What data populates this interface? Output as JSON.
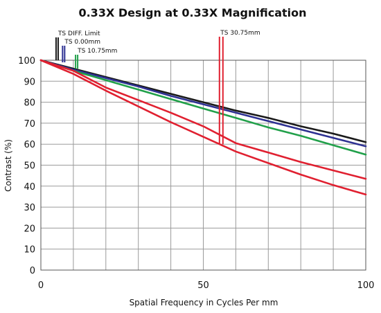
{
  "chart_data": {
    "type": "line",
    "title": "0.33X Design at 0.33X Magnification",
    "xlabel": "Spatial Frequency in Cycles Per mm",
    "ylabel": "Contrast (%)",
    "xlim": [
      0,
      100
    ],
    "ylim": [
      0,
      100
    ],
    "xticks": [
      0,
      50,
      100
    ],
    "yticks": [
      0,
      10,
      20,
      30,
      40,
      50,
      60,
      70,
      80,
      90,
      100
    ],
    "grid": true,
    "series": [
      {
        "color": "#1a1a1a",
        "x": [
          0,
          10,
          20,
          30,
          40,
          50,
          60,
          70,
          80,
          90,
          100
        ],
        "y": [
          100,
          96,
          92,
          88,
          84,
          80,
          76,
          72.5,
          68.5,
          65,
          61
        ]
      },
      {
        "color": "#2e3192",
        "x": [
          0,
          10,
          20,
          30,
          40,
          50,
          60,
          70,
          80,
          90,
          100
        ],
        "y": [
          100,
          95.5,
          91.5,
          87.5,
          83,
          79,
          75,
          71,
          67,
          63,
          59
        ]
      },
      {
        "color": "#21a04a",
        "x": [
          0,
          10,
          20,
          30,
          40,
          50,
          60,
          70,
          80,
          90,
          100
        ],
        "y": [
          100,
          95,
          90.5,
          86,
          81.5,
          77,
          72.5,
          68,
          64,
          59.5,
          55
        ]
      },
      {
        "color": "#e02030",
        "x": [
          0,
          10,
          20,
          30,
          40,
          50,
          60,
          70,
          80,
          90,
          100
        ],
        "y": [
          100,
          95,
          87,
          81,
          75,
          68.5,
          60.5,
          56,
          51.5,
          47.5,
          43.5
        ]
      },
      {
        "color": "#e02030",
        "x": [
          0,
          10,
          20,
          30,
          40,
          50,
          60,
          70,
          80,
          90,
          100
        ],
        "y": [
          100,
          93.5,
          85.5,
          78,
          70.5,
          63.5,
          56.5,
          51,
          45.5,
          40.5,
          36
        ]
      }
    ],
    "annotations": [
      {
        "text": "TS DIFF. Limit",
        "color": "#1a1a1a",
        "x": 5,
        "y": 100
      },
      {
        "text": "TS 0.00mm",
        "color": "#2e3192",
        "x": 7,
        "y": 99
      },
      {
        "text": "TS 10.75mm",
        "color": "#21a04a",
        "x": 11,
        "y": 96
      },
      {
        "text": "TS 30.75mm",
        "color": "#e02030",
        "x": 55.5,
        "y": 60
      }
    ]
  }
}
